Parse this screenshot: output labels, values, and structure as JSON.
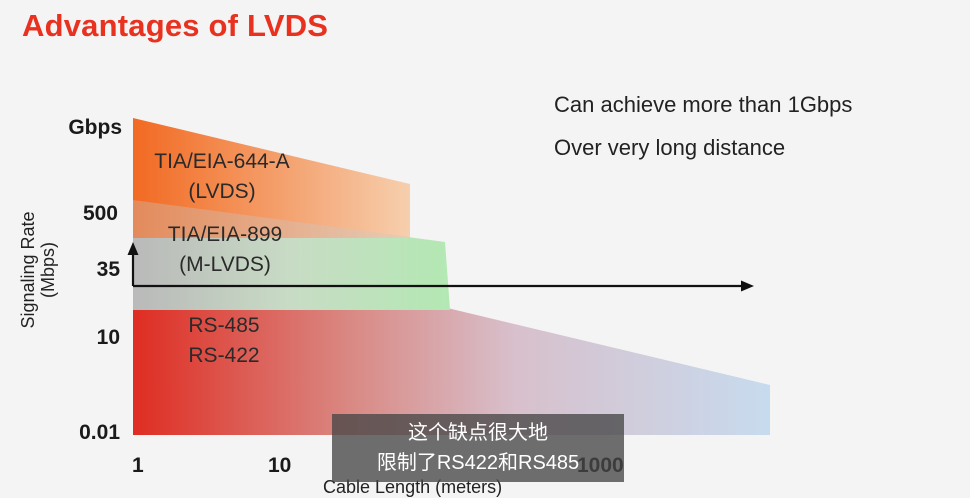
{
  "title": "Advantages of LVDS",
  "bullets": [
    "Can achieve more than 1Gbps",
    "Over very long distance"
  ],
  "y_axis": {
    "label_line1": "Signaling Rate",
    "label_line2": "(Mbps)",
    "ticks": [
      "Gbps",
      "500",
      "35",
      "10",
      "0.01"
    ]
  },
  "x_axis": {
    "label": "Cable Length (meters)",
    "ticks": [
      "1",
      "10",
      "1000"
    ]
  },
  "regions": [
    {
      "line1": "TIA/EIA-644-A",
      "line2": "(LVDS)",
      "color": "#f47a3a"
    },
    {
      "line1": "TIA/EIA-899",
      "line2": "(M-LVDS)",
      "color": "#9fd8a0"
    },
    {
      "line1": "RS-485",
      "line2": "RS-422",
      "color": "#e0362a"
    }
  ],
  "subtitle": {
    "line1": "这个缺点很大地",
    "line2": "限制了RS422和RS485"
  },
  "colors": {
    "title": "#e8321f",
    "lvds_region": "#f47a3a",
    "mlvds_region": "#9fd8a0",
    "rs_region_start": "#e0362a",
    "rs_region_end": "#c9dcef"
  }
}
